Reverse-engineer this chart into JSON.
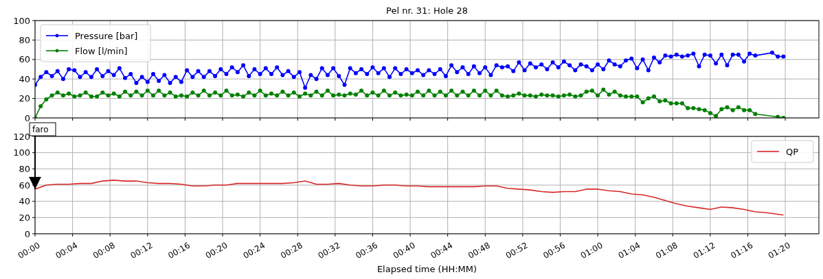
{
  "chart_data": [
    {
      "type": "line",
      "title": "Pel nr. 31: Hole 28",
      "xlim": [
        0,
        1.393
      ],
      "ylim": [
        0,
        100
      ],
      "yticks": [
        0,
        20,
        40,
        60,
        80,
        100
      ],
      "xticks": [
        {
          "value": 0,
          "label": null
        },
        {
          "value": 0.0667,
          "label": null
        },
        {
          "value": 0.1333,
          "label": null
        },
        {
          "value": 0.2,
          "label": null
        },
        {
          "value": 0.2667,
          "label": null
        },
        {
          "value": 0.3333,
          "label": null
        },
        {
          "value": 0.4,
          "label": null
        },
        {
          "value": 0.4667,
          "label": null
        },
        {
          "value": 0.5333,
          "label": null
        },
        {
          "value": 0.6,
          "label": null
        },
        {
          "value": 0.6667,
          "label": null
        },
        {
          "value": 0.7333,
          "label": null
        },
        {
          "value": 0.8,
          "label": null
        },
        {
          "value": 0.8667,
          "label": null
        },
        {
          "value": 0.9333,
          "label": null
        },
        {
          "value": 1,
          "label": null
        },
        {
          "value": 1.0667,
          "label": null
        },
        {
          "value": 1.1333,
          "label": null
        },
        {
          "value": 1.2,
          "label": null
        },
        {
          "value": 1.2667,
          "label": null
        },
        {
          "value": 1.3333,
          "label": null
        }
      ],
      "tick_labels": "y",
      "grid": true,
      "legend": "top left",
      "marker": "circle",
      "series": [
        {
          "name": "Pressure [bar]",
          "color": "#0000ff",
          "x": [
            0,
            0.01,
            0.02,
            0.03,
            0.04,
            0.05,
            0.06,
            0.07,
            0.08,
            0.09,
            0.1,
            0.11,
            0.12,
            0.13,
            0.14,
            0.15,
            0.16,
            0.17,
            0.18,
            0.19,
            0.2,
            0.21,
            0.22,
            0.23,
            0.24,
            0.25,
            0.26,
            0.27,
            0.28,
            0.29,
            0.3,
            0.31,
            0.32,
            0.33,
            0.34,
            0.35,
            0.36,
            0.37,
            0.38,
            0.39,
            0.4,
            0.41,
            0.42,
            0.43,
            0.44,
            0.45,
            0.46,
            0.47,
            0.48,
            0.49,
            0.5,
            0.51,
            0.52,
            0.53,
            0.54,
            0.55,
            0.56,
            0.57,
            0.58,
            0.59,
            0.6,
            0.61,
            0.62,
            0.63,
            0.64,
            0.65,
            0.66,
            0.67,
            0.68,
            0.69,
            0.7,
            0.71,
            0.72,
            0.73,
            0.74,
            0.75,
            0.76,
            0.77,
            0.78,
            0.79,
            0.8,
            0.81,
            0.82,
            0.83,
            0.84,
            0.85,
            0.86,
            0.87,
            0.88,
            0.89,
            0.9,
            0.91,
            0.92,
            0.93,
            0.94,
            0.95,
            0.96,
            0.97,
            0.98,
            0.99,
            1,
            1.01,
            1.02,
            1.03,
            1.04,
            1.05,
            1.06,
            1.07,
            1.08,
            1.09,
            1.1,
            1.11,
            1.12,
            1.13,
            1.14,
            1.15,
            1.16,
            1.17,
            1.18,
            1.19,
            1.2,
            1.21,
            1.22,
            1.23,
            1.24,
            1.25,
            1.26,
            1.27,
            1.28,
            1.31,
            1.32,
            1.33
          ],
          "values": [
            34,
            42,
            47,
            43,
            48,
            40,
            50,
            49,
            42,
            47,
            42,
            50,
            43,
            48,
            44,
            51,
            41,
            45,
            36,
            42,
            37,
            45,
            38,
            44,
            36,
            42,
            37,
            49,
            42,
            48,
            42,
            48,
            43,
            50,
            45,
            52,
            47,
            54,
            43,
            50,
            45,
            51,
            45,
            52,
            44,
            48,
            42,
            47,
            31,
            44,
            40,
            51,
            44,
            51,
            43,
            34,
            51,
            46,
            50,
            45,
            52,
            46,
            51,
            42,
            51,
            45,
            50,
            46,
            49,
            44,
            49,
            45,
            50,
            43,
            54,
            47,
            52,
            45,
            53,
            46,
            52,
            44,
            54,
            52,
            53,
            48,
            57,
            49,
            56,
            52,
            55,
            50,
            57,
            52,
            58,
            54,
            49,
            55,
            53,
            49,
            55,
            50,
            59,
            55,
            53,
            59,
            61,
            51,
            60,
            49,
            62,
            57,
            64,
            63,
            65,
            63,
            64,
            66,
            53,
            65,
            64,
            56,
            65,
            54,
            65,
            65,
            58,
            66,
            64,
            67,
            63,
            63
          ]
        },
        {
          "name": "Flow [l/min]",
          "color": "#008000",
          "x": [
            0,
            0.01,
            0.02,
            0.03,
            0.04,
            0.05,
            0.06,
            0.07,
            0.08,
            0.09,
            0.1,
            0.11,
            0.12,
            0.13,
            0.14,
            0.15,
            0.16,
            0.17,
            0.18,
            0.19,
            0.2,
            0.21,
            0.22,
            0.23,
            0.24,
            0.25,
            0.26,
            0.27,
            0.28,
            0.29,
            0.3,
            0.31,
            0.32,
            0.33,
            0.34,
            0.35,
            0.36,
            0.37,
            0.38,
            0.39,
            0.4,
            0.41,
            0.42,
            0.43,
            0.44,
            0.45,
            0.46,
            0.47,
            0.48,
            0.49,
            0.5,
            0.51,
            0.52,
            0.53,
            0.54,
            0.55,
            0.56,
            0.57,
            0.58,
            0.59,
            0.6,
            0.61,
            0.62,
            0.63,
            0.64,
            0.65,
            0.66,
            0.67,
            0.68,
            0.69,
            0.7,
            0.71,
            0.72,
            0.73,
            0.74,
            0.75,
            0.76,
            0.77,
            0.78,
            0.79,
            0.8,
            0.81,
            0.82,
            0.83,
            0.84,
            0.85,
            0.86,
            0.87,
            0.88,
            0.89,
            0.9,
            0.91,
            0.92,
            0.93,
            0.94,
            0.95,
            0.96,
            0.97,
            0.98,
            0.99,
            1,
            1.01,
            1.02,
            1.03,
            1.04,
            1.05,
            1.06,
            1.07,
            1.08,
            1.09,
            1.1,
            1.11,
            1.12,
            1.13,
            1.14,
            1.15,
            1.16,
            1.17,
            1.18,
            1.19,
            1.2,
            1.21,
            1.22,
            1.23,
            1.24,
            1.25,
            1.26,
            1.27,
            1.28,
            1.32,
            1.33
          ],
          "values": [
            0,
            12,
            19,
            23,
            26,
            23,
            25,
            22,
            23,
            26,
            22,
            22,
            26,
            23,
            25,
            22,
            27,
            23,
            27,
            23,
            28,
            23,
            28,
            23,
            26,
            22,
            23,
            22,
            26,
            23,
            28,
            23,
            26,
            23,
            28,
            23,
            24,
            22,
            26,
            23,
            28,
            23,
            25,
            23,
            27,
            23,
            26,
            22,
            25,
            23,
            27,
            23,
            28,
            23,
            24,
            23,
            25,
            24,
            28,
            23,
            26,
            23,
            28,
            23,
            26,
            23,
            24,
            23,
            27,
            23,
            28,
            23,
            27,
            23,
            28,
            23,
            27,
            23,
            28,
            23,
            28,
            23,
            28,
            23,
            22,
            23,
            25,
            23,
            23,
            22,
            24,
            23,
            23,
            22,
            23,
            24,
            22,
            23,
            27,
            28,
            23,
            29,
            24,
            27,
            23,
            22,
            22,
            22,
            16,
            20,
            22,
            17,
            18,
            15,
            15,
            15,
            10,
            10,
            9,
            8,
            5,
            2,
            9,
            11,
            8,
            11,
            8,
            8,
            4,
            1,
            0
          ]
        }
      ]
    },
    {
      "type": "line",
      "xlabel": "Elapsed time (HH:MM)",
      "xlim": [
        0,
        1.393
      ],
      "ylim": [
        0,
        120
      ],
      "yticks": [
        0,
        20,
        40,
        60,
        80,
        100,
        120
      ],
      "xticks": [
        {
          "value": 0,
          "label": "00:00"
        },
        {
          "value": 0.0667,
          "label": "00:04"
        },
        {
          "value": 0.1333,
          "label": "00:08"
        },
        {
          "value": 0.2,
          "label": "00:12"
        },
        {
          "value": 0.2667,
          "label": "00:16"
        },
        {
          "value": 0.3333,
          "label": "00:20"
        },
        {
          "value": 0.4,
          "label": "00:24"
        },
        {
          "value": 0.4667,
          "label": "00:28"
        },
        {
          "value": 0.5333,
          "label": "00:32"
        },
        {
          "value": 0.6,
          "label": "00:36"
        },
        {
          "value": 0.6667,
          "label": "00:40"
        },
        {
          "value": 0.7333,
          "label": "00:44"
        },
        {
          "value": 0.8,
          "label": "00:48"
        },
        {
          "value": 0.8667,
          "label": "00:52"
        },
        {
          "value": 0.9333,
          "label": "00:56"
        },
        {
          "value": 1,
          "label": "01:00"
        },
        {
          "value": 1.0667,
          "label": "01:04"
        },
        {
          "value": 1.1333,
          "label": "01:08"
        },
        {
          "value": 1.2,
          "label": "01:12"
        },
        {
          "value": 1.2667,
          "label": "01:16"
        },
        {
          "value": 1.3333,
          "label": "01:20"
        }
      ],
      "grid": true,
      "legend": "top right",
      "annotations": [
        "faro"
      ],
      "series": [
        {
          "name": "QP",
          "color": "#d62728",
          "x": [
            0,
            0.02,
            0.04,
            0.06,
            0.08,
            0.1,
            0.12,
            0.14,
            0.16,
            0.18,
            0.2,
            0.22,
            0.24,
            0.26,
            0.28,
            0.3,
            0.32,
            0.34,
            0.36,
            0.38,
            0.4,
            0.42,
            0.44,
            0.46,
            0.48,
            0.5,
            0.52,
            0.54,
            0.56,
            0.58,
            0.6,
            0.62,
            0.64,
            0.66,
            0.68,
            0.7,
            0.72,
            0.74,
            0.76,
            0.78,
            0.8,
            0.82,
            0.84,
            0.86,
            0.88,
            0.9,
            0.92,
            0.94,
            0.96,
            0.98,
            1,
            1.02,
            1.04,
            1.06,
            1.08,
            1.1,
            1.12,
            1.14,
            1.16,
            1.18,
            1.2,
            1.22,
            1.24,
            1.26,
            1.28,
            1.3,
            1.33
          ],
          "values": [
            55,
            60,
            61,
            61,
            62,
            62,
            65,
            66,
            65,
            65,
            63,
            62,
            62,
            61,
            59,
            59,
            60,
            60,
            62,
            62,
            62,
            62,
            62,
            63,
            65,
            61,
            61,
            62,
            60,
            59,
            59,
            60,
            60,
            59,
            59,
            58,
            58,
            58,
            58,
            58,
            59,
            59,
            56,
            55,
            54,
            52,
            51,
            52,
            52,
            55,
            55,
            53,
            52,
            49,
            48,
            45,
            41,
            37,
            34,
            32,
            30,
            33,
            32,
            30,
            27,
            26,
            23
          ]
        }
      ]
    }
  ]
}
